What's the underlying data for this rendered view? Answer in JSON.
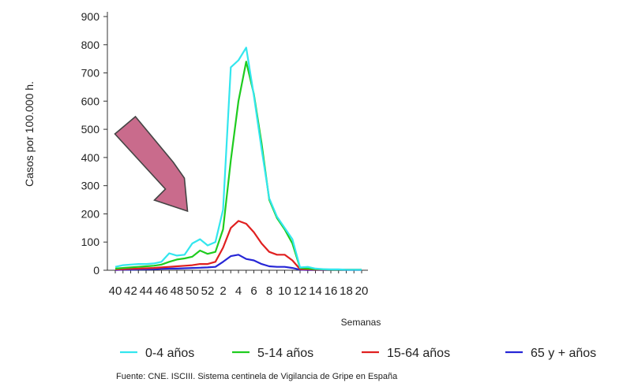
{
  "chart_data": {
    "type": "line",
    "ylabel": "Casos por 100.000 h.",
    "xlabel": "Semanas",
    "source": "Fuente: CNE. ISCIII. Sistema centinela de Vigilancia de Gripe en España",
    "ylim": [
      0,
      900
    ],
    "yticks": [
      "0",
      "100",
      "200",
      "300",
      "400",
      "500",
      "600",
      "700",
      "800",
      "900"
    ],
    "x_ticks": [
      "40",
      "42",
      "44",
      "46",
      "48",
      "50",
      "52",
      "2",
      "4",
      "6",
      "8",
      "10",
      "12",
      "14",
      "16",
      "18",
      "20"
    ],
    "weeks": [
      "40",
      "41",
      "42",
      "43",
      "44",
      "45",
      "46",
      "47",
      "48",
      "49",
      "50",
      "51",
      "52",
      "1",
      "2",
      "3",
      "4",
      "5",
      "6",
      "7",
      "8",
      "9",
      "10",
      "11",
      "12",
      "13",
      "14",
      "15",
      "16",
      "17",
      "18",
      "19",
      "20"
    ],
    "legend_position": "bottom",
    "grid": false,
    "series": [
      {
        "name": "0-4 años",
        "color": "#33e6ee",
        "values": [
          12,
          18,
          20,
          22,
          22,
          24,
          30,
          60,
          52,
          55,
          95,
          110,
          88,
          100,
          215,
          720,
          745,
          790,
          620,
          430,
          255,
          190,
          150,
          110,
          10,
          12,
          6,
          4,
          3,
          3,
          2,
          2,
          2
        ]
      },
      {
        "name": "5-14 años",
        "color": "#1fcc1f",
        "values": [
          6,
          8,
          10,
          12,
          14,
          16,
          20,
          30,
          38,
          42,
          48,
          70,
          58,
          65,
          145,
          390,
          600,
          740,
          625,
          450,
          250,
          185,
          145,
          95,
          8,
          6,
          4,
          3,
          2,
          2,
          2,
          2,
          2
        ]
      },
      {
        "name": "15-64 años",
        "color": "#e02020",
        "values": [
          3,
          4,
          5,
          6,
          7,
          8,
          10,
          12,
          14,
          16,
          18,
          22,
          22,
          30,
          80,
          150,
          175,
          165,
          135,
          95,
          65,
          55,
          55,
          35,
          4,
          3,
          2,
          2,
          2,
          2,
          2,
          2,
          2
        ]
      },
      {
        "name": "65 y + años",
        "color": "#2626d6",
        "values": [
          1,
          2,
          2,
          3,
          3,
          4,
          5,
          6,
          6,
          7,
          8,
          9,
          10,
          12,
          30,
          50,
          55,
          40,
          35,
          22,
          14,
          12,
          12,
          8,
          2,
          1,
          1,
          1,
          1,
          1,
          1,
          1,
          1
        ]
      }
    ],
    "annotation": {
      "type": "arrow",
      "color": "#c96b8c",
      "points_to_week": "50"
    }
  }
}
